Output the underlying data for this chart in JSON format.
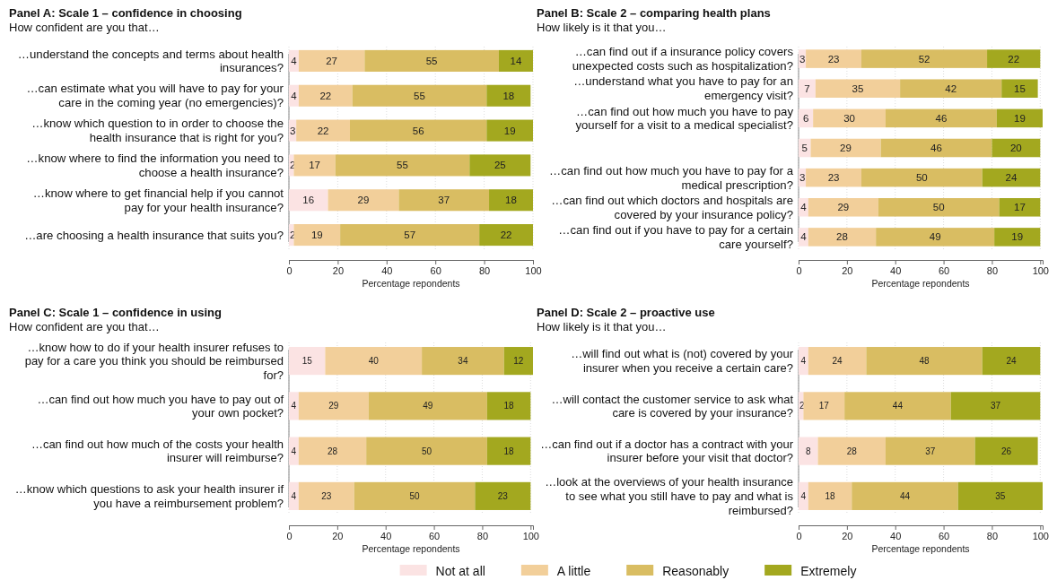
{
  "chart_data": [
    {
      "type": "bar",
      "orientation": "horizontal",
      "stacked": true,
      "data_labels": true,
      "grid": "x",
      "title": "Panel A: Scale 1 – confidence in choosing",
      "subtitle": "How confident are you that…",
      "xlabel": "Percentage repondents",
      "xlim": [
        0,
        100
      ],
      "xticks": [
        0,
        20,
        40,
        60,
        80,
        100
      ],
      "categories": [
        "…understand the concepts and terms about health insurances?",
        "…can estimate what you will have to pay for your care in the coming year (no emergencies)?",
        "…know which question to in order to choose the health insurance that is right for you?",
        "…know where to find the information you need to choose a health insurance?",
        "…know where to get financial help if you cannot pay for your health insurance?",
        "…are choosing a health insurance that suits you?"
      ],
      "series": [
        {
          "color": "#fbe3e3",
          "values": [
            4,
            4,
            3,
            2,
            16,
            2
          ]
        },
        {
          "color": "#f2cf9a",
          "values": [
            27,
            22,
            22,
            17,
            29,
            19
          ]
        },
        {
          "color": "#d9bd62",
          "values": [
            55,
            55,
            56,
            55,
            37,
            57
          ]
        },
        {
          "color": "#a3a81f",
          "values": [
            14,
            18,
            19,
            25,
            18,
            22
          ]
        }
      ]
    },
    {
      "type": "bar",
      "orientation": "horizontal",
      "stacked": true,
      "data_labels": true,
      "grid": "x",
      "title": "Panel B: Scale 2 – comparing health plans",
      "subtitle": "How likely is it that you…",
      "xlabel": "Percentage repondents",
      "xlim": [
        0,
        101
      ],
      "xticks": [
        0,
        20,
        40,
        60,
        80,
        100
      ],
      "categories": [
        "…can find out if a insurance policy covers unexpected costs such as hospitalization?",
        "…understand what you have to pay for an emergency visit?",
        "…can find out how much you have to pay yourself for a visit to a medical specialist?",
        null,
        "…can find out how much you have to pay for a medical prescription?",
        "…can find out which doctors and hospitals are covered by your insurance policy?",
        "…can find out if you have to pay for a certain care yourself?"
      ],
      "series": [
        {
          "color": "#fbe3e3",
          "values": [
            3,
            7,
            6,
            5,
            3,
            4,
            4
          ]
        },
        {
          "color": "#f2cf9a",
          "values": [
            23,
            35,
            30,
            29,
            23,
            29,
            28
          ]
        },
        {
          "color": "#d9bd62",
          "values": [
            52,
            42,
            46,
            46,
            50,
            50,
            49
          ]
        },
        {
          "color": "#a3a81f",
          "values": [
            22,
            15,
            19,
            20,
            24,
            17,
            19
          ]
        }
      ]
    },
    {
      "type": "bar",
      "orientation": "horizontal",
      "stacked": true,
      "data_labels": true,
      "grid": "x",
      "title": "Panel C: Scale 1 – confidence in using",
      "subtitle": "How confident are you that…",
      "xlabel": "Percentage repondents",
      "xlim": [
        0,
        101
      ],
      "xticks": [
        0,
        20,
        40,
        60,
        80,
        100
      ],
      "categories": [
        "…know how to do if your health insurer refuses to pay for a care you think you should be reimbursed for?",
        "…can find out how much you have to pay out of your own pocket?",
        "…can find out how much of the costs your health insurer will reimburse?",
        "…know which questions to ask your health insurer if you have a reimbursement problem?"
      ],
      "series": [
        {
          "color": "#fbe3e3",
          "values": [
            15,
            4,
            4,
            4
          ]
        },
        {
          "color": "#f2cf9a",
          "values": [
            40,
            29,
            28,
            23
          ]
        },
        {
          "color": "#d9bd62",
          "values": [
            34,
            49,
            50,
            50
          ]
        },
        {
          "color": "#a3a81f",
          "values": [
            12,
            18,
            18,
            23
          ]
        }
      ]
    },
    {
      "type": "bar",
      "orientation": "horizontal",
      "stacked": true,
      "data_labels": true,
      "grid": "x",
      "legend": "bottom",
      "title": "Panel D: Scale 2 – proactive use",
      "subtitle": "How likely is it that you…",
      "xlabel": "Percentage repondents",
      "xlim": [
        0,
        101
      ],
      "xticks": [
        0,
        20,
        40,
        60,
        80,
        100
      ],
      "categories": [
        "…will find out what is (not) covered by your insurer when you receive a certain care?",
        "…will contact the customer service to ask what care is covered by your insurance?",
        "…can find out if a doctor has a contract with your insurer before your visit that doctor?",
        "…look at the overviews of your health insurance to see what you still have to pay and what is reimbursed?"
      ],
      "series": [
        {
          "name": "Not at all",
          "color": "#fbe3e3",
          "values": [
            4,
            2,
            8,
            4
          ]
        },
        {
          "name": "A little",
          "color": "#f2cf9a",
          "values": [
            24,
            17,
            28,
            18
          ]
        },
        {
          "name": "Reasonably",
          "color": "#d9bd62",
          "values": [
            48,
            44,
            37,
            44
          ]
        },
        {
          "name": "Extremely",
          "color": "#a3a81f",
          "values": [
            24,
            37,
            26,
            35
          ]
        }
      ]
    }
  ]
}
